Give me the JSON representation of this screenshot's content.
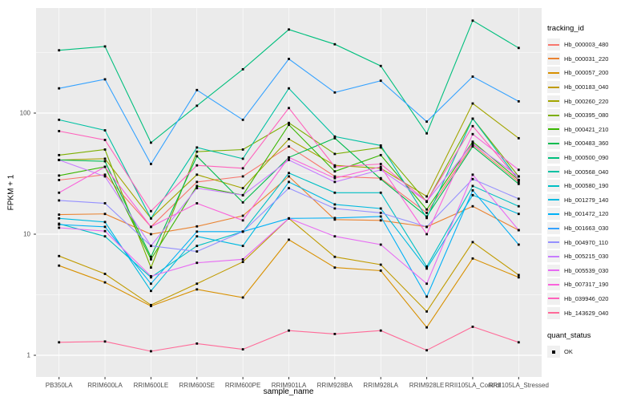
{
  "figure": {
    "bg": "#FFFFFF",
    "panel_bg": "#EBEBEB",
    "grid_color": "#FFFFFF",
    "tick_color": "#333333",
    "marker_color": "#000000"
  },
  "axes": {
    "x_title": "sample_name",
    "y_title": "FPKM + 1",
    "y_tick_labels": [
      "1",
      "10",
      "100"
    ]
  },
  "legend": {
    "tracking_title": "tracking_id",
    "quant_title": "quant_status",
    "quant_ok_label": "OK"
  },
  "chart_data": {
    "type": "line",
    "title": "",
    "xlabel": "sample_name",
    "ylabel": "FPKM + 1",
    "y_scale": "log10",
    "y_major_ticks": [
      1,
      10,
      100
    ],
    "y_minor_ticks": [
      3.162,
      31.62,
      316.2
    ],
    "ylim": [
      0.68,
      760
    ],
    "grid": true,
    "legend_position": "right",
    "marker": "black-square",
    "quant_status_values": [
      "OK"
    ],
    "categories": [
      "PB350LA",
      "RRIM600LA",
      "RRIM600LE",
      "RRIM600SE",
      "RRIM600PE",
      "RRIM901LA",
      "RRIM928BA",
      "RRIM928LA",
      "RRIM928LE",
      "RRII105LA_Control",
      "RRII105LA_Stressed"
    ],
    "series": [
      {
        "name": "Hb_000003_480",
        "color": "#F8766D",
        "values": [
          28,
          31,
          11.5,
          27,
          30,
          53,
          30,
          29,
          15,
          55,
          27
        ]
      },
      {
        "name": "Hb_000031_220",
        "color": "#EA8331",
        "values": [
          14.5,
          14.7,
          10,
          11.6,
          14.2,
          30,
          13.2,
          13,
          11.5,
          17,
          10.8
        ]
      },
      {
        "name": "Hb_000057_200",
        "color": "#D89000",
        "values": [
          5.5,
          4.0,
          2.55,
          3.5,
          3.0,
          9,
          5.3,
          5.0,
          1.7,
          6.3,
          4.4
        ]
      },
      {
        "name": "Hb_000183_040",
        "color": "#C09B00",
        "values": [
          6.6,
          4.7,
          2.6,
          3.9,
          5.9,
          13.5,
          6.5,
          5.6,
          2.3,
          8.6,
          4.6
        ]
      },
      {
        "name": "Hb_000260_220",
        "color": "#A3A500",
        "values": [
          41,
          42,
          13.5,
          31,
          24,
          61,
          37,
          35,
          20.5,
          120,
          62
        ]
      },
      {
        "name": "Hb_000395_080",
        "color": "#7CAE00",
        "values": [
          45,
          50,
          5.3,
          48,
          50,
          83,
          46,
          52,
          18.5,
          90,
          30
        ]
      },
      {
        "name": "Hb_000421_210",
        "color": "#39B600",
        "values": [
          30.5,
          36,
          6.2,
          25,
          21,
          80,
          33,
          45,
          16,
          58,
          28
        ]
      },
      {
        "name": "Hb_000483_360",
        "color": "#00BB4E",
        "values": [
          41,
          40,
          6.5,
          44,
          18.3,
          43,
          62,
          28.5,
          14,
          53,
          26
        ]
      },
      {
        "name": "Hb_000500_090",
        "color": "#00BF7D",
        "values": [
          330,
          355,
          57,
          115,
          230,
          490,
          370,
          245,
          68,
          580,
          345
        ]
      },
      {
        "name": "Hb_000568_040",
        "color": "#00C1A3",
        "values": [
          88,
          72,
          13.5,
          52,
          42,
          160,
          64,
          54,
          13.6,
          90,
          28
        ]
      },
      {
        "name": "Hb_000580_190",
        "color": "#00BFC4",
        "values": [
          12.2,
          9.6,
          4.4,
          8,
          10.5,
          32,
          22,
          22,
          5.4,
          25,
          17
        ]
      },
      {
        "name": "Hb_001279_140",
        "color": "#00BAE0",
        "values": [
          13.5,
          12.6,
          3.4,
          9.6,
          8,
          27,
          17.6,
          16.3,
          5.2,
          21,
          14.7
        ]
      },
      {
        "name": "Hb_001472_120",
        "color": "#00B0F6",
        "values": [
          12,
          11.5,
          3.9,
          10.5,
          10.5,
          13.5,
          13.6,
          14,
          3.05,
          23,
          8.2
        ]
      },
      {
        "name": "Hb_001663_030",
        "color": "#35A2FF",
        "values": [
          160,
          190,
          38,
          155,
          88,
          280,
          148,
          185,
          85,
          200,
          125
        ]
      },
      {
        "name": "Hb_004970_110",
        "color": "#9590FF",
        "values": [
          19,
          18,
          8,
          7.2,
          10.5,
          24,
          16.3,
          15,
          11.5,
          28.5,
          19.6
        ]
      },
      {
        "name": "Hb_005215_030",
        "color": "#C77CFF",
        "values": [
          41,
          30,
          8,
          24,
          21,
          41,
          27,
          34,
          18.7,
          56,
          30
        ]
      },
      {
        "name": "Hb_005539_030",
        "color": "#E76BF3",
        "values": [
          11.3,
          10.6,
          4.5,
          5.8,
          6.2,
          13.5,
          9.6,
          8.2,
          3.9,
          31,
          10.8
        ]
      },
      {
        "name": "Hb_007317_190",
        "color": "#FA62DB",
        "values": [
          22,
          36,
          11.5,
          18,
          13,
          43,
          29,
          36,
          10,
          67,
          34
        ]
      },
      {
        "name": "Hb_039946_020",
        "color": "#FF62BC",
        "values": [
          71,
          60,
          15.5,
          37,
          35,
          110,
          36,
          38,
          18.7,
          78,
          28
        ]
      },
      {
        "name": "Hb_143629_040",
        "color": "#FF6A98",
        "values": [
          1.28,
          1.3,
          1.08,
          1.25,
          1.12,
          1.6,
          1.5,
          1.6,
          1.1,
          1.72,
          1.28
        ]
      }
    ]
  }
}
